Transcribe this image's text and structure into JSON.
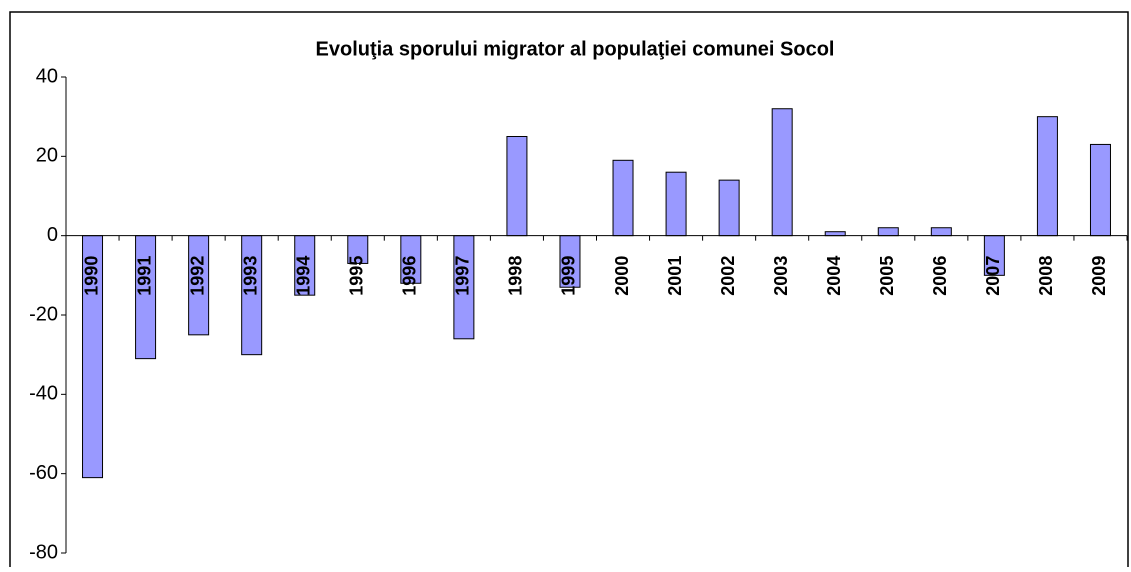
{
  "chart_data": {
    "type": "bar",
    "title": "Evoluţia sporului migrator al populaţiei comunei Socol",
    "categories": [
      "1990",
      "1991",
      "1992",
      "1993",
      "1994",
      "1995",
      "1996",
      "1997",
      "1998",
      "1999",
      "2000",
      "2001",
      "2002",
      "2003",
      "2004",
      "2005",
      "2006",
      "2007",
      "2008",
      "2009"
    ],
    "values": [
      -61,
      -31,
      -25,
      -30,
      -15,
      -7,
      -12,
      -26,
      25,
      -13,
      19,
      16,
      14,
      32,
      1,
      2,
      2,
      -10,
      30,
      23
    ],
    "color": "#9999ff",
    "ylim": [
      -80,
      40
    ],
    "yticks": [
      -80,
      -60,
      -40,
      -20,
      0,
      20,
      40
    ],
    "grid": false
  }
}
